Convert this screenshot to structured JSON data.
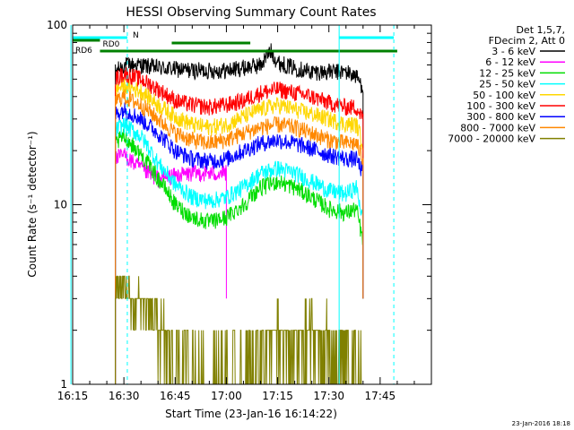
{
  "chart_data": {
    "type": "line",
    "title": "HESSI Observing Summary Count Rates",
    "xlabel": "Start Time (23-Jan-16 16:14:22)",
    "ylabel": "Count Rate (s⁻¹ detector⁻¹)",
    "y_scale": "log",
    "ylim": [
      1,
      100
    ],
    "xlim_minutes_after_1615": [
      0,
      105
    ],
    "x_tick_labels": [
      "16:15",
      "16:30",
      "16:45",
      "17:00",
      "17:15",
      "17:30",
      "17:45"
    ],
    "x_tick_minutes": [
      0,
      15,
      30,
      45,
      60,
      75,
      90
    ],
    "y_tick_labels": [
      "1",
      "10",
      "100"
    ],
    "y_tick_values": [
      1,
      10,
      100
    ],
    "legend_header": [
      "Det 1,5,7,",
      "FDecim 2, Att 0"
    ],
    "legend_position": "right",
    "series": [
      {
        "name": "3 - 6 keV",
        "color": "#000000",
        "x": [
          12.5,
          15,
          20,
          25,
          30,
          35,
          40,
          45,
          50,
          55,
          58,
          60,
          65,
          70,
          75,
          80,
          83,
          85
        ],
        "y": [
          55,
          60,
          60,
          58,
          57,
          56,
          56,
          56,
          58,
          60,
          72,
          62,
          58,
          55,
          55,
          55,
          52,
          45
        ]
      },
      {
        "name": "6 - 12 keV",
        "color": "#ff00ff",
        "x": [
          12.5,
          15,
          18,
          22,
          25,
          30,
          35,
          40,
          45
        ],
        "y": [
          18,
          19,
          17,
          15,
          14,
          14.5,
          15,
          15,
          15
        ]
      },
      {
        "name": "12 - 25 keV",
        "color": "#00dd00",
        "x": [
          12.5,
          15,
          20,
          25,
          30,
          35,
          40,
          45,
          50,
          55,
          60,
          65,
          70,
          75,
          80,
          83,
          85
        ],
        "y": [
          22,
          24,
          19,
          14,
          10,
          8.5,
          8,
          8.5,
          10,
          12.5,
          13.5,
          12.5,
          11,
          9.5,
          9,
          9.5,
          6
        ]
      },
      {
        "name": "25 - 50 keV",
        "color": "#00ffff",
        "x": [
          12.5,
          15,
          20,
          25,
          30,
          35,
          40,
          45,
          50,
          55,
          60,
          65,
          70,
          75,
          80,
          83,
          85
        ],
        "y": [
          26,
          28,
          24,
          17,
          13,
          11,
          10.5,
          11,
          12.5,
          15,
          16,
          15,
          13.5,
          12,
          11.5,
          12.5,
          8
        ]
      },
      {
        "name": "50 - 100 keV",
        "color": "#ffd700",
        "x": [
          12.5,
          15,
          20,
          25,
          30,
          35,
          40,
          45,
          50,
          55,
          60,
          65,
          70,
          75,
          80,
          83,
          85
        ],
        "y": [
          44,
          46,
          43,
          36,
          31,
          28,
          27,
          28,
          31,
          34,
          36,
          34,
          32,
          30,
          28,
          28,
          22
        ]
      },
      {
        "name": "100 - 300 keV",
        "color": "#ff0000",
        "x": [
          12.5,
          15,
          20,
          25,
          30,
          35,
          40,
          45,
          50,
          55,
          60,
          65,
          70,
          75,
          80,
          83,
          85
        ],
        "y": [
          50,
          54,
          50,
          44,
          38,
          36,
          35,
          36,
          38,
          42,
          44,
          42,
          40,
          37,
          35,
          35,
          30
        ]
      },
      {
        "name": "300 - 800 keV",
        "color": "#0000ff",
        "x": [
          12.5,
          15,
          20,
          25,
          30,
          35,
          40,
          45,
          50,
          55,
          60,
          65,
          70,
          75,
          80,
          83,
          85
        ],
        "y": [
          32,
          34,
          30,
          25,
          20,
          18,
          17.5,
          18,
          20,
          22,
          23,
          22,
          20.5,
          19,
          18,
          18,
          15
        ]
      },
      {
        "name": "800 - 7000 keV",
        "color": "#ff8800",
        "x": [
          12.5,
          15,
          20,
          25,
          30,
          35,
          40,
          45,
          50,
          55,
          60,
          65,
          70,
          75,
          80,
          83,
          85
        ],
        "y": [
          38,
          40,
          36,
          30,
          25,
          23,
          22,
          23,
          25,
          27,
          28,
          27,
          25,
          23,
          22,
          22,
          18
        ]
      },
      {
        "name": "7000 - 20000 keV",
        "color": "#808000",
        "x": [
          12.5,
          15,
          18,
          20,
          22,
          24,
          26,
          28,
          30,
          40,
          45,
          50,
          55,
          60,
          65,
          70,
          75,
          80,
          85
        ],
        "y": [
          3.5,
          3.2,
          2.8,
          3,
          2.5,
          2.2,
          2,
          1.6,
          1.3,
          1,
          1,
          1,
          1.7,
          1.8,
          1.6,
          1.9,
          1.7,
          1.3,
          1
        ]
      }
    ],
    "annotations": [
      {
        "label": "N",
        "kind": "night",
        "color": "#00ffff",
        "x_start": 0,
        "x_end": 16
      },
      {
        "label": "RD0",
        "kind": "flag",
        "color": "#008000",
        "x_start": 0,
        "x_end": 8
      },
      {
        "label": "RD6",
        "kind": "flag",
        "color": "#008000",
        "x_start": 8,
        "x_end": 95
      },
      {
        "label": "",
        "kind": "flag",
        "color": "#008000",
        "x_start": 29,
        "x_end": 52
      },
      {
        "label": "",
        "kind": "night",
        "color": "#00ffff",
        "x_start": 78,
        "x_end": 94
      }
    ],
    "vlines_solid_minutes": [
      -0.5,
      78
    ],
    "vlines_dashed_minutes": [
      16,
      94
    ],
    "grid": false
  },
  "footer": {
    "date_stamp": "23-Jan-2016 18:18"
  }
}
